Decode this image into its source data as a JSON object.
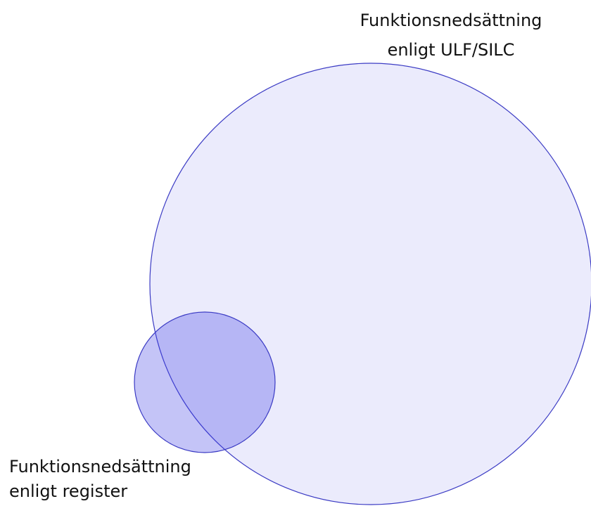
{
  "sets": [
    {
      "label": [
        "Funktionsnedsättning",
        "enligt ULF/SILC"
      ]
    },
    {
      "label": [
        "Funktionsnedsättning",
        "enligt register"
      ]
    }
  ]
}
